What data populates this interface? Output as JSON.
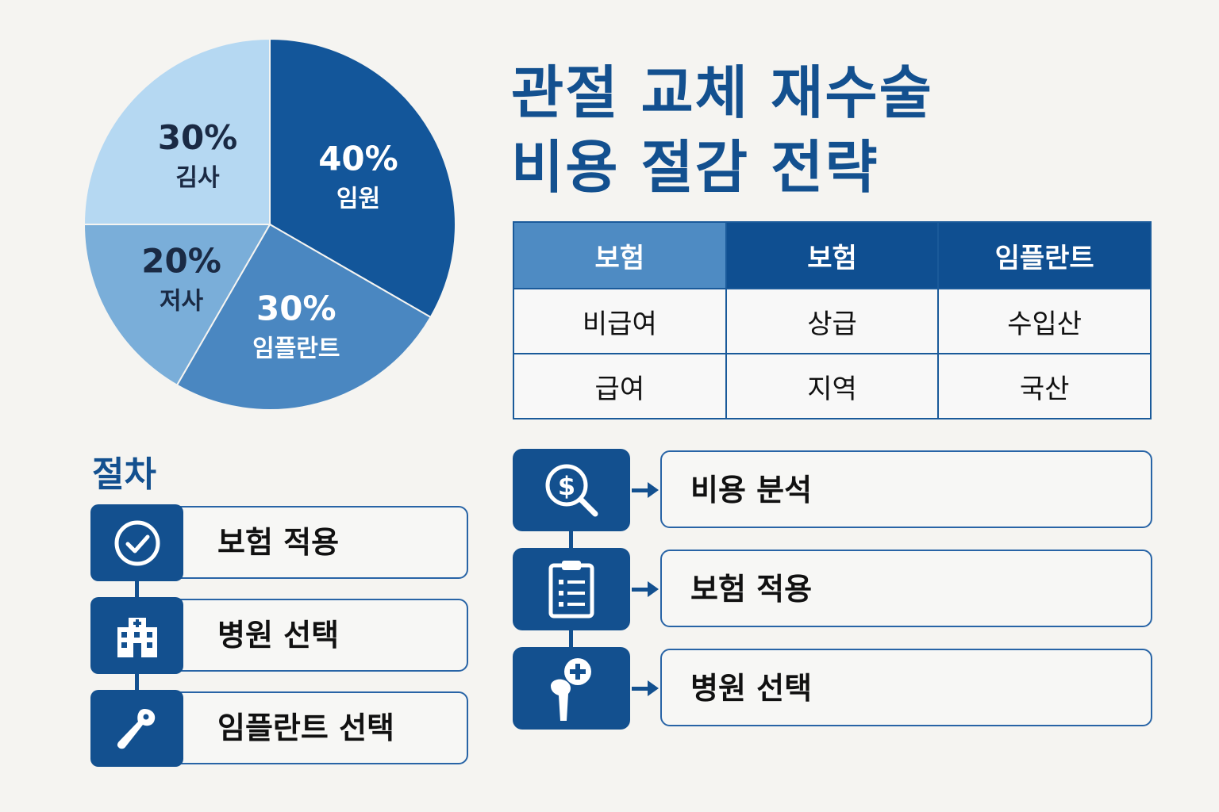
{
  "title": {
    "line1": "관절 교체 재수술",
    "line2": "비용 절감 전략"
  },
  "pie": {
    "slices": [
      {
        "percent": "40%",
        "label": "임원",
        "value": 40,
        "color": "#13569a",
        "text_color": "#ffffff"
      },
      {
        "percent": "30%",
        "label": "임플란트",
        "value": 30,
        "color": "#4a87c1",
        "text_color": "#ffffff"
      },
      {
        "percent": "20%",
        "label": "저사",
        "value": 20,
        "color": "#7aaed9",
        "text_color": "#1a2a44"
      },
      {
        "percent": "30%",
        "label": "김사",
        "value": 30,
        "color": "#b5d8f2",
        "text_color": "#1a2a44"
      }
    ]
  },
  "table": {
    "headers": [
      "보험",
      "보험",
      "임플란트"
    ],
    "rows": [
      [
        "비급여",
        "상급",
        "수입산"
      ],
      [
        "급여",
        "지역",
        "국산"
      ]
    ]
  },
  "procedure": {
    "heading": "절차",
    "steps": [
      {
        "label": "보험 적용",
        "icon": "check-circle-icon"
      },
      {
        "label": "병원 선택",
        "icon": "hospital-icon"
      },
      {
        "label": "임플란트 선택",
        "icon": "implant-icon"
      }
    ]
  },
  "flow": {
    "steps": [
      {
        "label": "비용 분석",
        "icon": "dollar-search-icon"
      },
      {
        "label": "보험 적용",
        "icon": "clipboard-icon"
      },
      {
        "label": "병원 선택",
        "icon": "hip-implant-icon"
      }
    ]
  },
  "colors": {
    "primary": "#13508f",
    "background": "#f5f4f1"
  }
}
